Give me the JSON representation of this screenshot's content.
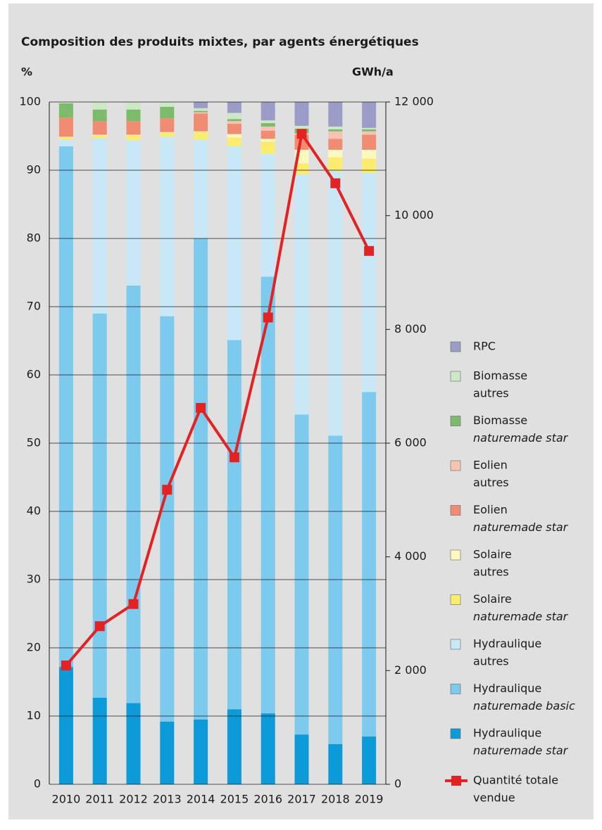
{
  "chart_data": {
    "type": "stacked-bar-line",
    "title": "Composition des produits mixtes, par agents énergétiques",
    "y_label": "%",
    "y2_label": "GWh/a",
    "categories": [
      "2010",
      "2011",
      "2012",
      "2013",
      "2014",
      "2015",
      "2016",
      "2017",
      "2018",
      "2019"
    ],
    "ylim": [
      0,
      100
    ],
    "yticks": [
      0,
      10,
      20,
      30,
      40,
      50,
      60,
      70,
      80,
      90,
      100
    ],
    "y2lim": [
      0,
      12000
    ],
    "y2ticks": [
      0,
      {
        "value": 2000,
        "label": "2 000"
      },
      {
        "value": 4000,
        "label": "4 000"
      },
      {
        "value": 6000,
        "label": "6 000"
      },
      {
        "value": 8000,
        "label": "8 000"
      },
      {
        "value": 10000,
        "label": "10 000"
      },
      {
        "value": 12000,
        "label": "12 000"
      }
    ],
    "grid": true,
    "series": [
      {
        "name": "Hydraulique",
        "qualifier": "naturemade star",
        "qualifier_italic": true,
        "color": "#0d9ad8",
        "values": [
          17.2,
          12.7,
          11.9,
          9.2,
          9.5,
          11.0,
          10.4,
          7.3,
          5.9,
          7.0
        ]
      },
      {
        "name": "Hydraulique",
        "qualifier": "naturemade basic",
        "qualifier_italic": true,
        "color": "#7ccbef",
        "values": [
          76.3,
          56.3,
          61.2,
          59.4,
          70.5,
          54.1,
          64.0,
          46.9,
          45.2,
          50.5
        ]
      },
      {
        "name": "Hydraulique",
        "qualifier": "autres",
        "qualifier_italic": false,
        "color": "#c8e8f8",
        "values": [
          1.0,
          25.7,
          21.3,
          26.3,
          14.5,
          28.4,
          18.0,
          35.2,
          38.8,
          32.1
        ]
      },
      {
        "name": "Solaire",
        "qualifier": "naturemade star",
        "qualifier_italic": true,
        "color": "#fbec6d",
        "values": [
          0.3,
          0.4,
          0.7,
          0.6,
          1.1,
          1.3,
          1.8,
          1.6,
          2.0,
          2.1
        ]
      },
      {
        "name": "Solaire",
        "qualifier": "autres",
        "qualifier_italic": false,
        "color": "#fdf8c0",
        "values": [
          0.1,
          0.1,
          0.1,
          0.1,
          0.1,
          0.5,
          0.4,
          2.0,
          1.1,
          1.3
        ]
      },
      {
        "name": "Eolien",
        "qualifier": "naturemade star",
        "qualifier_italic": true,
        "color": "#ef8c72",
        "values": [
          2.8,
          2.0,
          2.0,
          2.0,
          2.6,
          1.5,
          1.2,
          2.2,
          1.6,
          2.2
        ]
      },
      {
        "name": "Eolien",
        "qualifier": "autres",
        "qualifier_italic": false,
        "color": "#f9c3b3",
        "values": [
          0,
          0,
          0,
          0,
          0.2,
          0.4,
          0.6,
          0.2,
          1.1,
          0.5
        ]
      },
      {
        "name": "Biomasse",
        "qualifier": "naturemade star",
        "qualifier_italic": true,
        "color": "#7dbb6c",
        "values": [
          2.1,
          1.7,
          1.7,
          1.7,
          0.2,
          0.3,
          0.5,
          0.7,
          0.3,
          0.3
        ]
      },
      {
        "name": "Biomasse",
        "qualifier": "autres",
        "qualifier_italic": false,
        "color": "#cde8c4",
        "values": [
          0.2,
          1.1,
          1.1,
          0.7,
          0.4,
          0.9,
          0.4,
          0.4,
          0.4,
          0.2
        ]
      },
      {
        "name": "RPC",
        "color": "#9c9cc8",
        "values": [
          0,
          0,
          0,
          0,
          0.9,
          1.6,
          2.7,
          3.5,
          3.6,
          3.8
        ]
      },
      {
        "name": "Quantité totale",
        "qualifier": "vendue",
        "qualifier_italic": false,
        "color": "#e32323",
        "axis": "y2",
        "type": "line",
        "values": [
          2090,
          2780,
          3170,
          5180,
          6620,
          5750,
          8210,
          11440,
          10570,
          9380
        ]
      }
    ]
  }
}
